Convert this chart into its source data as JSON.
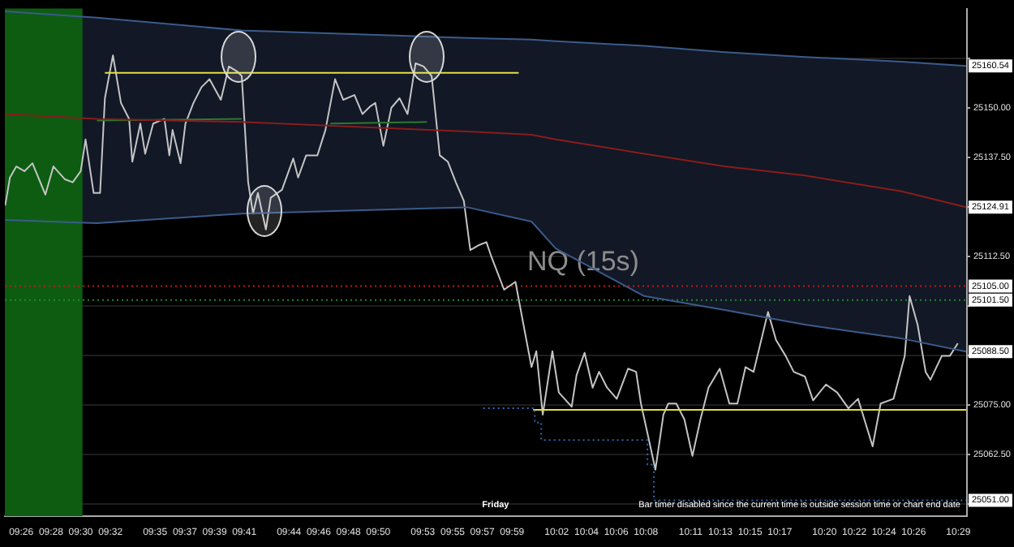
{
  "chart_data": {
    "type": "line",
    "title": "NQ (15s)",
    "xlim": [
      9.415,
      10.493
    ],
    "ylim": [
      25047,
      25175
    ],
    "xticks": [
      {
        "value": 9.4333,
        "label": "09:26"
      },
      {
        "value": 9.4667,
        "label": "09:28"
      },
      {
        "value": 9.5,
        "label": "09:30"
      },
      {
        "value": 9.5333,
        "label": "09:32"
      },
      {
        "value": 9.5833,
        "label": "09:35"
      },
      {
        "value": 9.6167,
        "label": "09:37"
      },
      {
        "value": 9.65,
        "label": "09:39"
      },
      {
        "value": 9.6833,
        "label": "09:41"
      },
      {
        "value": 9.7333,
        "label": "09:44"
      },
      {
        "value": 9.7667,
        "label": "09:46"
      },
      {
        "value": 9.8,
        "label": "09:48"
      },
      {
        "value": 9.8333,
        "label": "09:50"
      },
      {
        "value": 9.8833,
        "label": "09:53"
      },
      {
        "value": 9.9167,
        "label": "09:55"
      },
      {
        "value": 9.95,
        "label": "09:57"
      },
      {
        "value": 9.9833,
        "label": "09:59"
      },
      {
        "value": 10.0333,
        "label": "10:02"
      },
      {
        "value": 10.0667,
        "label": "10:04"
      },
      {
        "value": 10.1,
        "label": "10:06"
      },
      {
        "value": 10.1333,
        "label": "10:08"
      },
      {
        "value": 10.1833,
        "label": "10:11"
      },
      {
        "value": 10.2167,
        "label": "10:13"
      },
      {
        "value": 10.25,
        "label": "10:15"
      },
      {
        "value": 10.2833,
        "label": "10:17"
      },
      {
        "value": 10.3333,
        "label": "10:20"
      },
      {
        "value": 10.3667,
        "label": "10:22"
      },
      {
        "value": 10.4,
        "label": "10:24"
      },
      {
        "value": 10.4333,
        "label": "10:26"
      },
      {
        "value": 10.4833,
        "label": "10:29"
      }
    ],
    "yticks": [
      {
        "value": 25050,
        "label": null
      },
      {
        "value": 25062.5,
        "label": "25062.50"
      },
      {
        "value": 25075,
        "label": "25075.00"
      },
      {
        "value": 25087.5,
        "label": null
      },
      {
        "value": 25100,
        "label": null
      },
      {
        "value": 25112.5,
        "label": "25112.50"
      },
      {
        "value": 25125,
        "label": null
      },
      {
        "value": 25137.5,
        "label": "25137.50"
      },
      {
        "value": 25150,
        "label": "25150.00"
      },
      {
        "value": 25162.5,
        "label": null
      }
    ],
    "grid": "y",
    "legend": false,
    "marker": "none",
    "bands": [
      {
        "axis": "x",
        "from": 9.415,
        "to": 9.502,
        "color": "#0d5c12"
      }
    ],
    "ref_lines": [
      {
        "axis": "y",
        "value": 25105,
        "label": "25105.00",
        "color": "#c01818",
        "line_style": "dotted"
      },
      {
        "axis": "y",
        "value": 25101.5,
        "label": "25101.50",
        "color": "#1f8a2a",
        "line_style": "dotted"
      }
    ],
    "series": [
      {
        "type": "line",
        "color": "#8a1c1c",
        "x": [
          9.4153,
          9.5181,
          9.6804,
          9.933,
          10.0051,
          10.0322,
          10.1314,
          10.2216,
          10.3115,
          10.4199,
          10.4921
        ],
        "values": [
          25148.4,
          25147.2,
          25146.4,
          25144.0,
          25143.2,
          25142.0,
          25138.4,
          25135.2,
          25132.9,
          25128.9,
          25124.91
        ],
        "upper": [
          25174.3,
          25172.7,
          25169.5,
          25167.6,
          25167.2,
          25166.8,
          25165.6,
          25164.0,
          25162.8,
          25161.6,
          25160.54
        ],
        "lower": [
          25121.7,
          25120.9,
          25123.3,
          25124.9,
          25121.3,
          25114.5,
          25102.5,
          25099.0,
          25095.3,
          25091.8,
          25088.5
        ],
        "value_labels": [
          null,
          null,
          null,
          null,
          null,
          null,
          null,
          null,
          null,
          null,
          "25124.91"
        ]
      },
      {
        "type": "line",
        "color": "#3b5b8a",
        "x": [
          9.4153,
          9.5181,
          9.6804,
          9.933,
          10.0051,
          10.0322,
          10.1314,
          10.2216,
          10.3115,
          10.4199,
          10.4921
        ],
        "values": [
          25174.3,
          25172.7,
          25169.5,
          25167.6,
          25167.2,
          25166.8,
          25165.6,
          25164.0,
          25162.8,
          25161.6,
          25160.54
        ],
        "value_labels": [
          null,
          null,
          null,
          null,
          null,
          null,
          null,
          null,
          null,
          null,
          "25160.54"
        ]
      },
      {
        "type": "line",
        "color": "#3b5b8a",
        "x": [
          9.4153,
          9.5181,
          9.6804,
          9.933,
          10.0051,
          10.0322,
          10.1314,
          10.2216,
          10.3115,
          10.4199,
          10.4921
        ],
        "values": [
          25121.7,
          25120.9,
          25123.3,
          25124.9,
          25121.3,
          25114.5,
          25102.5,
          25099.0,
          25095.3,
          25091.8,
          25088.5
        ],
        "value_labels": [
          null,
          null,
          null,
          null,
          null,
          null,
          null,
          null,
          null,
          null,
          "25088.50"
        ]
      },
      {
        "type": "line",
        "color": "#2c7a2c",
        "x": [
          9.5181,
          9.6804,
          9.73,
          9.7797,
          9.8879
        ],
        "values": [
          25146.8,
          25147.2,
          null,
          25146.0,
          25146.4
        ]
      },
      {
        "type": "step",
        "color": "#2f6bb0",
        "line_style": "dotted",
        "x": [
          9.951,
          10.0088,
          10.016,
          10.0232,
          10.135,
          10.1422,
          10.1494,
          10.4921
        ],
        "values": [
          25074.2,
          25074.2,
          25070.6,
          25066.2,
          25066.2,
          25060,
          25051,
          25051
        ],
        "value_labels": [
          null,
          null,
          null,
          null,
          null,
          null,
          null,
          "25051.00"
        ]
      },
      {
        "type": "line",
        "color": "#e2e23c",
        "x": [
          9.5271,
          9.9907
        ],
        "values": [
          25158.8,
          25158.8
        ]
      },
      {
        "type": "line",
        "color": "#e2e23c",
        "x": [
          10.0069,
          10.4921
        ],
        "values": [
          25073.8,
          25073.8
        ]
      },
      {
        "type": "line",
        "color": "#c4c4c4",
        "x": [
          9.4153,
          9.4207,
          9.4279,
          9.4369,
          9.4459,
          9.4604,
          9.4694,
          9.482,
          9.491,
          9.5,
          9.5054,
          9.5145,
          9.5217,
          9.5271,
          9.5361,
          9.5451,
          9.5542,
          9.5578,
          9.5668,
          9.5722,
          9.5812,
          9.5938,
          9.5993,
          9.6029,
          9.6119,
          9.6173,
          9.6263,
          9.6353,
          9.6443,
          9.657,
          9.666,
          9.675,
          9.6804,
          9.6876,
          9.6931,
          9.6985,
          9.7075,
          9.7129,
          9.7255,
          9.7381,
          9.7436,
          9.7526,
          9.7652,
          9.7742,
          9.785,
          9.7941,
          9.8067,
          9.8157,
          9.8247,
          9.8301,
          9.8391,
          9.8481,
          9.8572,
          9.8662,
          9.8752,
          9.8842,
          9.8932,
          9.9023,
          9.9113,
          9.9203,
          9.9293,
          9.9365,
          9.9456,
          9.9546,
          9.96,
          9.9744,
          9.9871,
          9.9961,
          10.0051,
          10.0105,
          10.0177,
          10.0285,
          10.0357,
          10.0501,
          10.0556,
          10.0646,
          10.0736,
          10.0808,
          10.0898,
          10.1006,
          10.1133,
          10.1223,
          10.1277,
          10.1367,
          10.1439,
          10.1529,
          10.1583,
          10.1673,
          10.1764,
          10.1854,
          10.1944,
          10.2034,
          10.216,
          10.2268,
          10.2358,
          10.2449,
          10.2539,
          10.2701,
          10.2791,
          10.2899,
          10.2989,
          10.3115,
          10.3206,
          10.335,
          10.3476,
          10.3602,
          10.371,
          10.3873,
          10.3963,
          10.4107,
          10.4233,
          10.4287,
          10.4377,
          10.4467,
          10.4521,
          10.4648,
          10.4738,
          10.4828
        ],
        "values": [
          25125.3,
          25132.4,
          25135.2,
          25134.0,
          25136.0,
          25128.1,
          25135.2,
          25132.0,
          25131.2,
          25134.0,
          25142.0,
          25128.5,
          25128.5,
          25152.4,
          25163.2,
          25151.2,
          25147.2,
          25136.4,
          25146.0,
          25138.4,
          25146.0,
          25147.2,
          25138.0,
          25144.4,
          25136.0,
          25146.0,
          25151.2,
          25155.2,
          25157.2,
          25152.0,
          25160.4,
          25159.2,
          25158.0,
          25131.2,
          25123.3,
          25128.5,
          25119.3,
          25127.3,
          25129.3,
          25137.2,
          25132.4,
          25138.0,
          25138.0,
          25144.4,
          25157.2,
          25152.0,
          25153.2,
          25148.4,
          25150.4,
          25151.2,
          25140.4,
          25150.0,
          25152.4,
          25148.4,
          25161.2,
          25160.4,
          25158.0,
          25138.0,
          25136.4,
          25131.2,
          25126.5,
          25114.1,
          25115.3,
          25116.1,
          25112.5,
          25104.1,
          25106.1,
          25095.3,
          25084.6,
          25088.6,
          25072.6,
          25088.6,
          25078.2,
          25074.6,
          25082.6,
          25088.2,
          25079.4,
          25083.4,
          25079.4,
          25076.6,
          25084.2,
          25083.4,
          25075.4,
          25066.2,
          25058.7,
          25072.6,
          25075.4,
          25075.4,
          25071.4,
          25062.2,
          25071.4,
          25079.4,
          25084.2,
          25075.4,
          25075.4,
          25084.6,
          25083.4,
          25098.5,
          25091.4,
          25087.4,
          25083.4,
          25082.2,
          25076.2,
          25080.2,
          25078.2,
          25074.2,
          25076.6,
          25064.6,
          25075.4,
          25076.6,
          25087.4,
          25102.5,
          25095.3,
          25083.4,
          25081.4,
          25087.4,
          25087.4,
          25090.6
        ]
      }
    ],
    "annotations": [
      "Friday",
      "Bar timer disabled since the current time is outside session time or chart end date"
    ]
  }
}
